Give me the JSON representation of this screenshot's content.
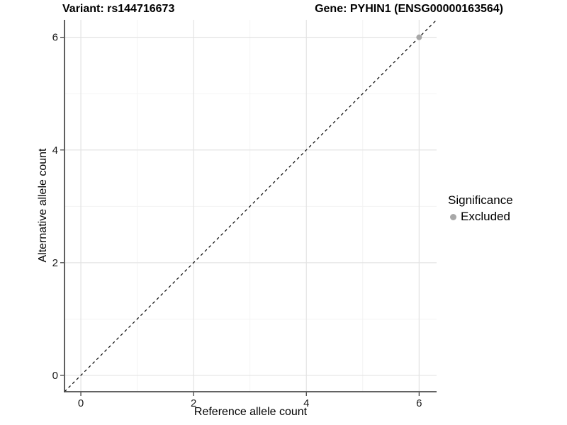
{
  "figure": {
    "title_left": "Variant: rs144716673",
    "title_right": "Gene: PYHIN1 (ENSG00000163564)"
  },
  "chart_data": {
    "type": "scatter",
    "title_left": "Variant: rs144716673",
    "title_right": "Gene: PYHIN1 (ENSG00000163564)",
    "xlabel": "Reference allele count",
    "ylabel": "Alternative allele count",
    "xlim": [
      -0.29,
      6.31
    ],
    "ylim": [
      -0.29,
      6.31
    ],
    "xticks": [
      0,
      2,
      4,
      6
    ],
    "yticks": [
      0,
      2,
      4,
      6
    ],
    "x_minor_ticks": [
      1,
      3,
      5
    ],
    "y_minor_ticks": [
      1,
      3,
      5
    ],
    "grid": "major-and-minor",
    "identity_line": {
      "slope": 1,
      "intercept": 0,
      "linetype": "dashed",
      "color": "#000000"
    },
    "series": [
      {
        "name": "Excluded",
        "marker": "circle",
        "color": "#A8A8A8",
        "points": [
          {
            "x": 6,
            "y": 6
          }
        ]
      }
    ],
    "legend": {
      "title": "Significance",
      "position": "right",
      "items": [
        {
          "label": "Excluded",
          "marker": "circle",
          "color": "#A8A8A8"
        }
      ]
    }
  },
  "colors": {
    "background": "#FFFFFF",
    "grid_major": "#E3E3E3",
    "grid_minor": "#F2F2F2",
    "axis_line": "#4D4D4D",
    "tick_mark": "#333333",
    "tick_label": "#1A1A1A",
    "point_fill": "#A8A8A8",
    "identity_line": "#000000"
  }
}
